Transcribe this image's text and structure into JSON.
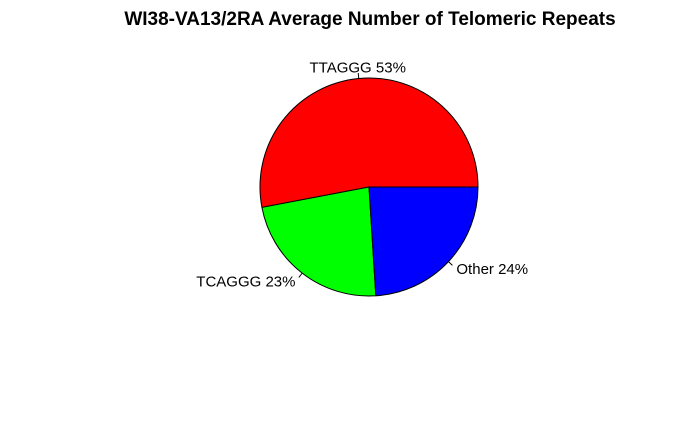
{
  "chart_data": {
    "type": "pie",
    "title": "WI38-VA13/2RA Average Number of Telomeric Repeats",
    "slices": [
      {
        "label": "TTAGGG 53%",
        "value": 53,
        "color": "#ff0000"
      },
      {
        "label": "TCAGGG 23%",
        "value": 23,
        "color": "#00ff00"
      },
      {
        "label": "Other 24%",
        "value": 24,
        "color": "#0000ff"
      }
    ],
    "start_angle_deg": 0,
    "direction": "counterclockwise",
    "legend": "none"
  }
}
